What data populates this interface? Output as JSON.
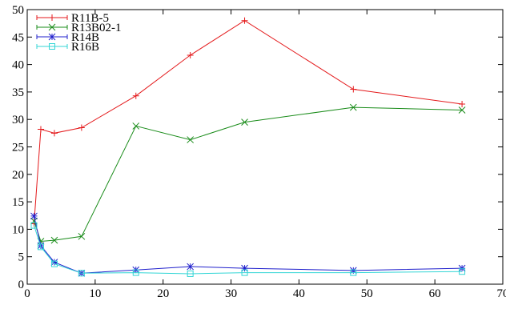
{
  "chart_data": {
    "type": "line",
    "title": "",
    "xlabel": "",
    "ylabel": "",
    "xlim": [
      0,
      70
    ],
    "ylim": [
      0,
      50
    ],
    "xticks": [
      0,
      10,
      20,
      30,
      40,
      50,
      60,
      70
    ],
    "yticks": [
      0,
      5,
      10,
      15,
      20,
      25,
      30,
      35,
      40,
      45,
      50
    ],
    "grid": false,
    "legend_position": "top-left",
    "series": [
      {
        "name": "R11B-5",
        "color": "#e41a1c",
        "marker": "plus",
        "x": [
          1,
          2,
          4,
          8,
          16,
          24,
          32,
          48,
          64
        ],
        "y": [
          11.0,
          28.2,
          27.5,
          28.5,
          34.3,
          41.7,
          48.0,
          35.5,
          32.8
        ]
      },
      {
        "name": "R13B02-1",
        "color": "#1a8c1a",
        "marker": "x",
        "x": [
          1,
          2,
          4,
          8,
          16,
          24,
          32,
          48,
          64
        ],
        "y": [
          11.5,
          7.8,
          8.0,
          8.7,
          28.8,
          26.3,
          29.5,
          32.2,
          31.7
        ]
      },
      {
        "name": "R14B",
        "color": "#2020cc",
        "marker": "star",
        "x": [
          1,
          2,
          4,
          8,
          16,
          24,
          32,
          48,
          64
        ],
        "y": [
          12.4,
          7.0,
          4.0,
          2.0,
          2.6,
          3.2,
          2.9,
          2.5,
          2.9
        ]
      },
      {
        "name": "R16B",
        "color": "#33d6d6",
        "marker": "square",
        "x": [
          1,
          2,
          4,
          8,
          16,
          24,
          32,
          48,
          64
        ],
        "y": [
          10.7,
          6.8,
          3.7,
          2.0,
          2.1,
          1.9,
          2.1,
          2.1,
          2.3
        ]
      }
    ]
  }
}
